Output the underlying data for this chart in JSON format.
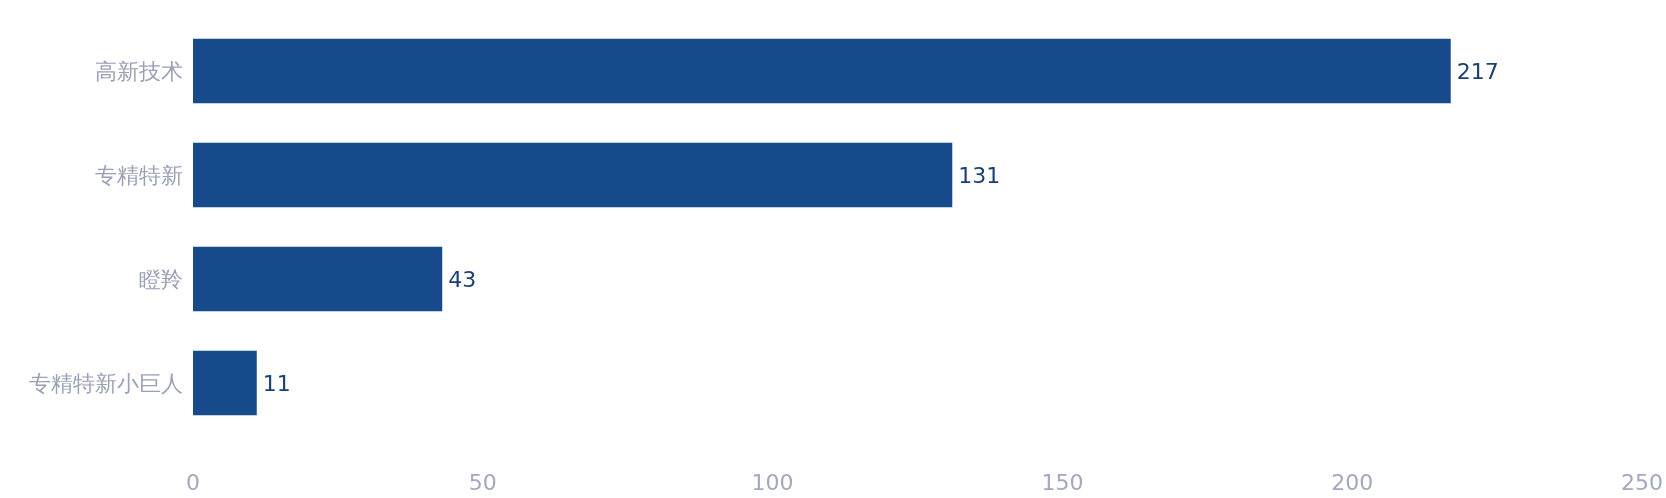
{
  "chart_data": {
    "type": "bar",
    "orientation": "horizontal",
    "categories": [
      "高新技术",
      "专精特新",
      "瞪羚",
      "专精特新小巨人"
    ],
    "values": [
      217,
      131,
      43,
      11
    ],
    "color": "#174a8b",
    "xlim": [
      0,
      250
    ],
    "xticks": [
      0,
      50,
      100,
      150,
      200,
      250
    ],
    "data_labels": true
  }
}
